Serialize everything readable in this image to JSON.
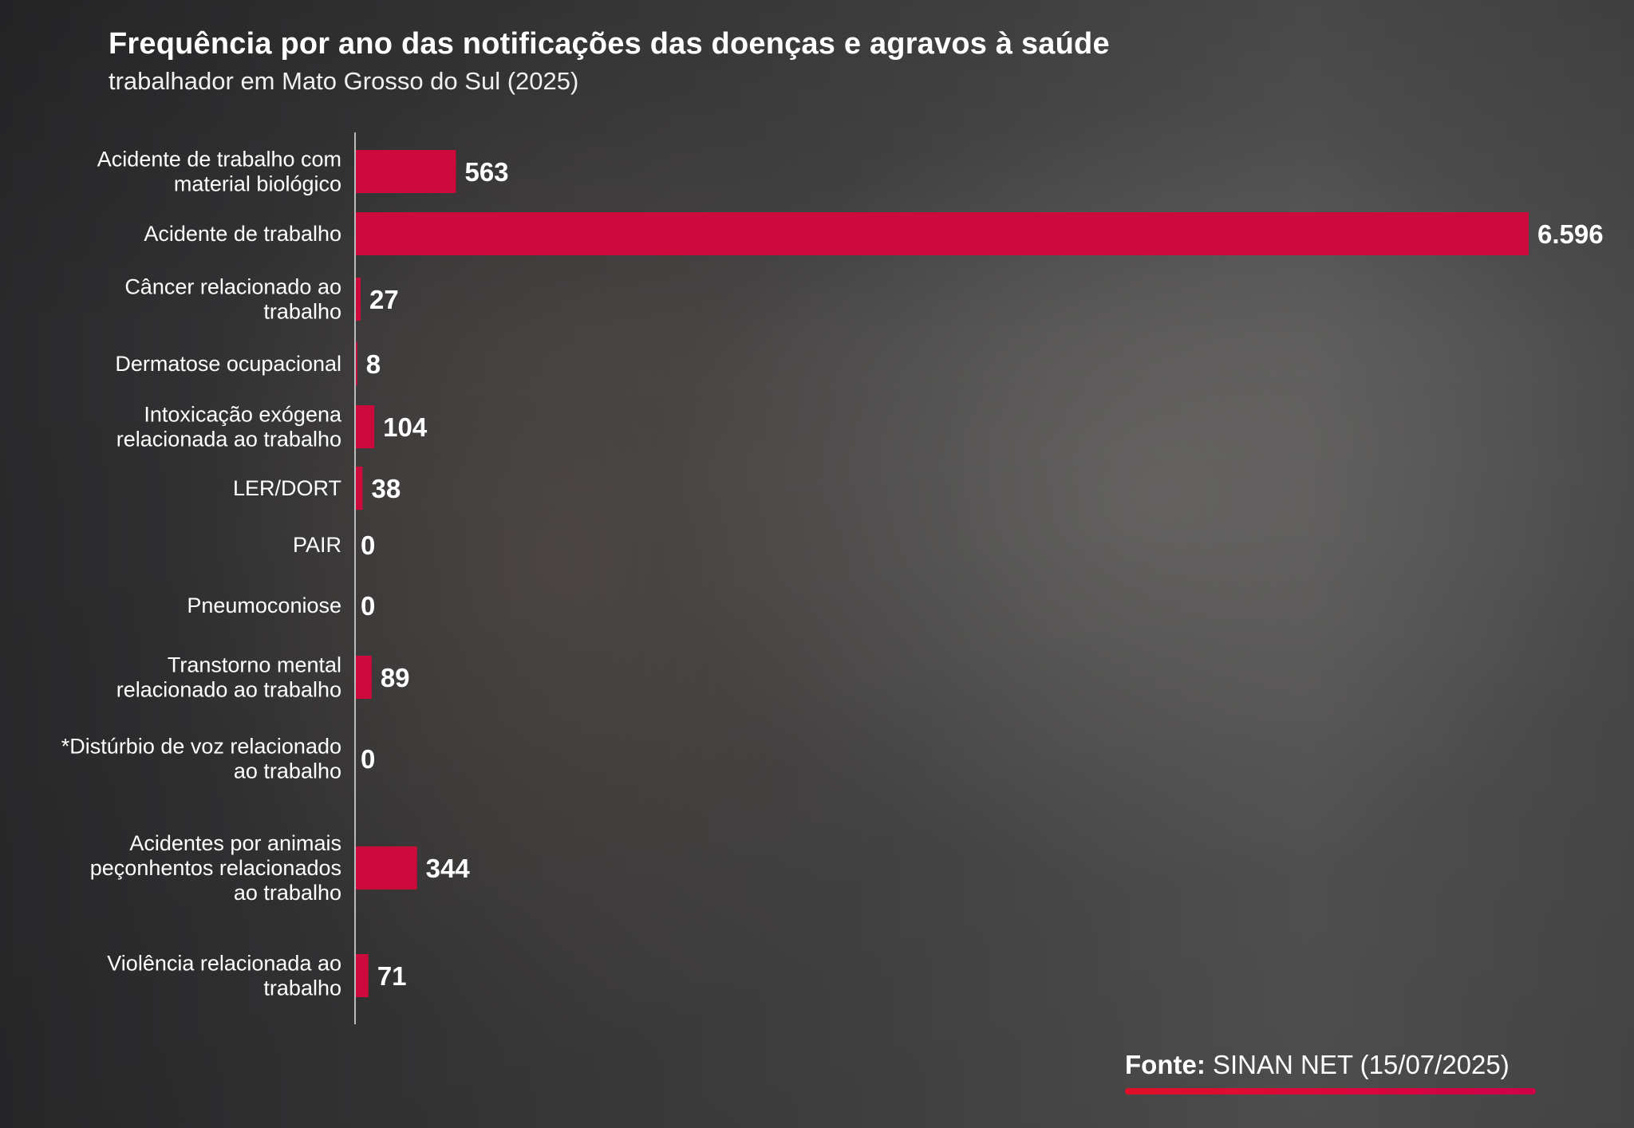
{
  "title": "Frequência por ano das notificações das doenças e agravos à saúde",
  "subtitle": "trabalhador em Mato Grosso do Sul (2025)",
  "source": {
    "prefix": "Fonte:",
    "text": " SINAN NET (15/07/2025)"
  },
  "colors": {
    "bar": "#cc0a3c",
    "axis": "#bbbbbb",
    "text": "#ffffff",
    "underline": "#e0102a"
  },
  "chart_data": {
    "type": "bar",
    "orientation": "horizontal",
    "title": "Frequência por ano das notificações das doenças e agravos à saúde",
    "subtitle": "trabalhador em Mato Grosso do Sul (2025)",
    "xlabel": "",
    "ylabel": "",
    "xlim": [
      0,
      6596
    ],
    "grid": false,
    "legend": "none",
    "categories": [
      [
        "Acidente de trabalho com",
        "material biológico"
      ],
      [
        "Acidente de trabalho"
      ],
      [
        "Câncer relacionado ao",
        "trabalho"
      ],
      [
        "Dermatose ocupacional"
      ],
      [
        "Intoxicação exógena",
        "relacionada ao trabalho"
      ],
      [
        "LER/DORT"
      ],
      [
        "PAIR"
      ],
      [
        "Pneumoconiose"
      ],
      [
        "Transtorno mental",
        "relacionado ao trabalho"
      ],
      [
        "*Distúrbio de voz relacionado",
        "ao trabalho"
      ],
      [
        "Acidentes por animais",
        "peçonhentos relacionados",
        "ao trabalho"
      ],
      [
        "Violência relacionada ao",
        "trabalho"
      ]
    ],
    "values": [
      563,
      6596,
      27,
      8,
      104,
      38,
      0,
      0,
      89,
      0,
      344,
      71
    ],
    "value_labels": [
      "563",
      "6.596",
      "27",
      "8",
      "104",
      "38",
      "0",
      "0",
      "89",
      "0",
      "344",
      "71"
    ]
  }
}
